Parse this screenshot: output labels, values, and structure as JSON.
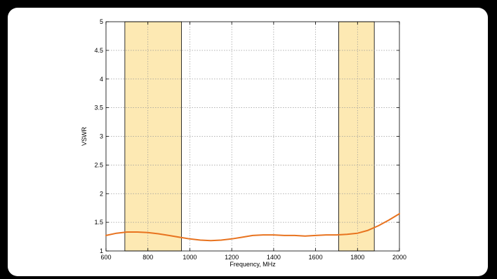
{
  "chart_data": {
    "type": "line",
    "title": "",
    "xlabel": "Frequency, MHz",
    "ylabel": "VSWR",
    "xlim": [
      600,
      2000
    ],
    "ylim": [
      1,
      5
    ],
    "x_ticks": [
      600,
      800,
      1000,
      1200,
      1400,
      1600,
      1800,
      2000
    ],
    "y_ticks": [
      1,
      1.5,
      2,
      2.5,
      3,
      3.5,
      4,
      4.5,
      5
    ],
    "y_tick_labels": [
      "1",
      "1.5",
      "2",
      "2.5",
      "3",
      "3.5",
      "4",
      "4.5",
      "5"
    ],
    "grid": true,
    "bands": [
      {
        "from": 690,
        "to": 960,
        "color": "#fde9b3"
      },
      {
        "from": 1710,
        "to": 1880,
        "color": "#fde9b3"
      }
    ],
    "series": [
      {
        "color": "#e8731f",
        "x": [
          600,
          650,
          700,
          750,
          800,
          850,
          900,
          950,
          1000,
          1050,
          1100,
          1150,
          1200,
          1250,
          1300,
          1350,
          1400,
          1450,
          1500,
          1550,
          1600,
          1650,
          1700,
          1750,
          1800,
          1850,
          1900,
          1950,
          2000
        ],
        "y": [
          1.27,
          1.31,
          1.33,
          1.33,
          1.32,
          1.3,
          1.27,
          1.24,
          1.21,
          1.19,
          1.18,
          1.19,
          1.21,
          1.24,
          1.27,
          1.28,
          1.28,
          1.27,
          1.27,
          1.26,
          1.27,
          1.28,
          1.28,
          1.29,
          1.31,
          1.36,
          1.44,
          1.54,
          1.65
        ]
      }
    ]
  }
}
